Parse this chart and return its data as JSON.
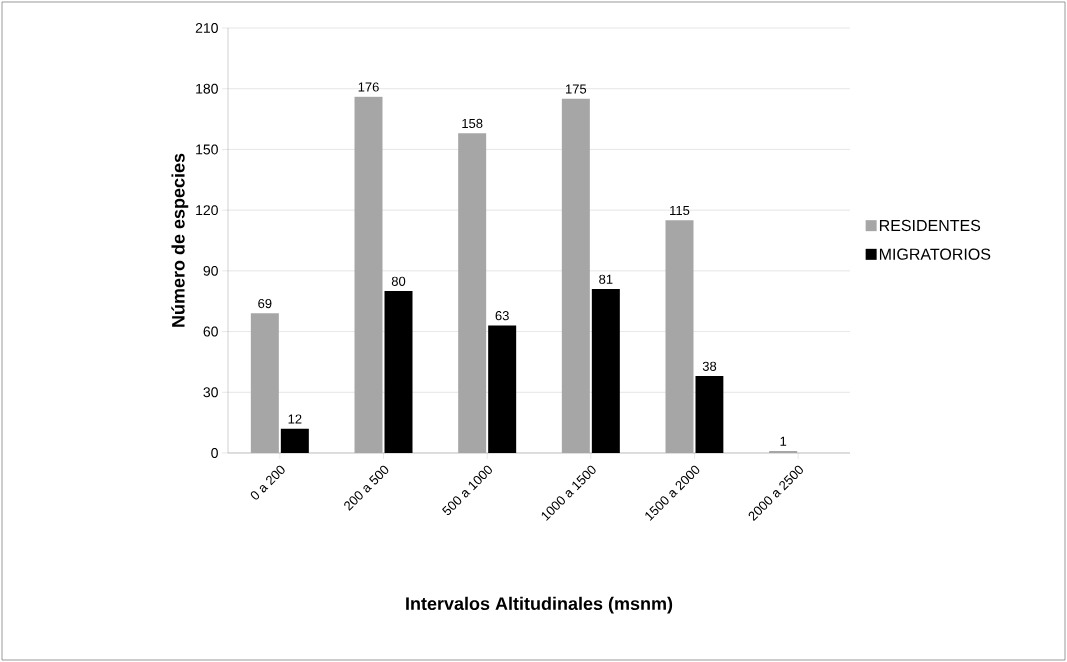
{
  "chart_data": {
    "type": "bar",
    "xlabel": "Intervalos  Altitudinales  (msnm)",
    "ylabel": "Número de especies",
    "categories": [
      "0 a 200",
      "200 a 500",
      "500 a 1000",
      "1000 a 1500",
      "1500 a 2000",
      "2000 a 2500"
    ],
    "series": [
      {
        "name": "RESIDENTES",
        "color": "#a6a6a6",
        "values": [
          69,
          176,
          158,
          175,
          115,
          1
        ]
      },
      {
        "name": "MIGRATORIOS",
        "color": "#000000",
        "values": [
          12,
          80,
          63,
          81,
          38,
          null
        ]
      }
    ],
    "ylim": [
      0,
      210
    ],
    "yticks": [
      0,
      30,
      60,
      90,
      120,
      150,
      180,
      210
    ],
    "grid": "y",
    "legend": "right",
    "data_labels": true
  }
}
